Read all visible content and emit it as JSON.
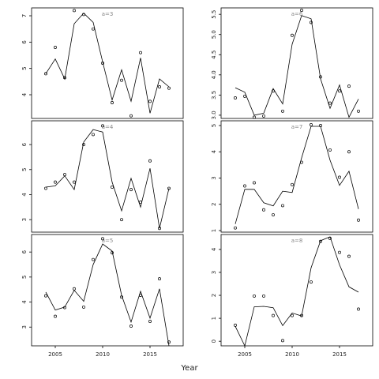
{
  "xlabel": "Year",
  "chart_data": [
    {
      "type": "line",
      "title": "a=3",
      "xlim": [
        2002.5,
        2018.5
      ],
      "ylim": [
        3.1,
        7.3
      ],
      "yticks": [
        4,
        5,
        6,
        7
      ],
      "x": [
        2004,
        2005,
        2006,
        2007,
        2008,
        2009,
        2010,
        2011,
        2012,
        2013,
        2014,
        2015,
        2016,
        2017
      ],
      "series": [
        {
          "style": "line",
          "color": "#000000",
          "values": [
            4.8,
            5.36,
            4.6,
            6.7,
            7.1,
            6.75,
            5.25,
            3.8,
            4.95,
            3.75,
            5.4,
            3.3,
            4.6,
            4.3
          ]
        },
        {
          "style": "points",
          "color": "#000000",
          "values": [
            4.8,
            5.8,
            4.65,
            7.2,
            7.05,
            6.5,
            5.2,
            3.7,
            4.55,
            3.2,
            5.6,
            3.75,
            4.3,
            4.25
          ]
        }
      ]
    },
    {
      "type": "line",
      "title": "a=6",
      "xlim": [
        2002.5,
        2018.5
      ],
      "ylim": [
        2.92,
        5.66
      ],
      "yticks": [
        {
          "value": 3,
          "label": "3.0"
        },
        3.5,
        {
          "value": 4,
          "label": "4.0"
        },
        4.5,
        {
          "value": 5,
          "label": "5.0"
        },
        5.5
      ],
      "x": [
        2004,
        2005,
        2006,
        2007,
        2008,
        2009,
        2010,
        2011,
        2012,
        2013,
        2014,
        2015,
        2016,
        2017
      ],
      "series": [
        {
          "style": "line",
          "color": "#000000",
          "values": [
            3.68,
            3.57,
            3.0,
            3.05,
            3.66,
            3.28,
            4.76,
            5.47,
            5.39,
            3.9,
            3.17,
            3.75,
            2.95,
            3.4
          ]
        },
        {
          "style": "points",
          "color": "#000000",
          "values": [
            3.43,
            3.47,
            2.95,
            2.98,
            3.6,
            3.1,
            4.98,
            5.6,
            5.3,
            3.95,
            3.3,
            3.6,
            3.72,
            3.1
          ]
        }
      ]
    },
    {
      "type": "line",
      "title": "a=4",
      "xlim": [
        2002.5,
        2018.5
      ],
      "ylim": [
        2.5,
        6.95
      ],
      "yticks": [
        3,
        4,
        5,
        6
      ],
      "x": [
        2004,
        2005,
        2006,
        2007,
        2008,
        2009,
        2010,
        2011,
        2012,
        2013,
        2014,
        2015,
        2016,
        2017
      ],
      "series": [
        {
          "style": "line",
          "color": "#000000",
          "values": [
            4.3,
            4.35,
            4.75,
            4.2,
            6.1,
            6.6,
            6.5,
            4.5,
            3.35,
            4.65,
            3.5,
            5.05,
            2.65,
            4.25
          ]
        },
        {
          "style": "points",
          "color": "#000000",
          "values": [
            4.25,
            4.5,
            4.8,
            4.5,
            6.0,
            6.4,
            6.75,
            4.3,
            3.0,
            4.2,
            3.7,
            5.35,
            2.65,
            4.25
          ]
        }
      ]
    },
    {
      "type": "line",
      "title": "a=7",
      "xlim": [
        2002.5,
        2018.5
      ],
      "ylim": [
        0.94,
        5.18
      ],
      "yticks": [
        1,
        2,
        3,
        4,
        5
      ],
      "x": [
        2004,
        2005,
        2006,
        2007,
        2008,
        2009,
        2010,
        2011,
        2012,
        2013,
        2014,
        2015,
        2016,
        2017
      ],
      "series": [
        {
          "style": "line",
          "color": "#000000",
          "values": [
            1.25,
            2.57,
            2.57,
            2.06,
            1.94,
            2.5,
            2.45,
            3.77,
            4.97,
            4.97,
            3.68,
            2.72,
            3.26,
            1.82
          ]
        },
        {
          "style": "points",
          "color": "#000000",
          "values": [
            1.1,
            2.7,
            2.82,
            1.79,
            1.6,
            1.95,
            2.75,
            3.6,
            5.03,
            5.0,
            4.07,
            3.03,
            4.0,
            1.4
          ]
        }
      ]
    },
    {
      "type": "line",
      "title": "a=5",
      "xlim": [
        2002.5,
        2018.5
      ],
      "ylim": [
        2.25,
        6.7
      ],
      "yticks": [
        3,
        4,
        5,
        6
      ],
      "xticks": [
        2005,
        2010,
        2015
      ],
      "x": [
        2004,
        2005,
        2006,
        2007,
        2008,
        2009,
        2010,
        2011,
        2012,
        2013,
        2014,
        2015,
        2016,
        2017
      ],
      "series": [
        {
          "style": "line",
          "color": "#000000",
          "values": [
            4.4,
            3.68,
            3.8,
            4.47,
            4.03,
            5.5,
            6.32,
            6.04,
            4.27,
            3.2,
            4.43,
            3.36,
            4.53,
            2.25
          ]
        },
        {
          "style": "points",
          "color": "#000000",
          "values": [
            4.25,
            3.43,
            3.78,
            4.53,
            3.8,
            5.7,
            6.53,
            5.97,
            4.2,
            3.04,
            4.27,
            3.23,
            4.93,
            2.4
          ]
        }
      ]
    },
    {
      "type": "line",
      "title": "a=8",
      "xlim": [
        2002.5,
        2018.5
      ],
      "ylim": [
        -0.2,
        4.65
      ],
      "yticks": [
        0,
        1,
        2,
        3,
        4
      ],
      "xticks": [
        2005,
        2010,
        2015
      ],
      "x": [
        2004,
        2005,
        2006,
        2007,
        2008,
        2009,
        2010,
        2011,
        2012,
        2013,
        2014,
        2015,
        2016,
        2017
      ],
      "series": [
        {
          "style": "line",
          "color": "#000000",
          "values": [
            0.65,
            -0.2,
            1.5,
            1.52,
            1.46,
            0.68,
            1.23,
            1.1,
            3.2,
            4.38,
            4.55,
            3.33,
            2.37,
            2.14
          ]
        },
        {
          "style": "points",
          "color": "#000000",
          "values": [
            0.7,
            null,
            1.97,
            1.97,
            1.12,
            0.03,
            1.12,
            1.12,
            2.58,
            4.35,
            4.48,
            3.87,
            3.7,
            1.4
          ]
        }
      ]
    }
  ]
}
